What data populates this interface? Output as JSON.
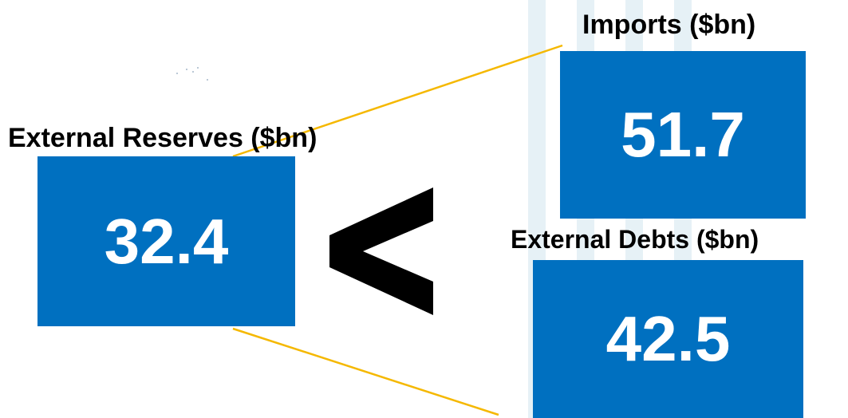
{
  "reserves": {
    "label": "External Reserves ($bn)",
    "value": "32.4"
  },
  "imports": {
    "label": "Imports ($bn)",
    "value": "51.7"
  },
  "debts": {
    "label": "External Debts  ($bn)",
    "value": "42.5"
  },
  "comparison": {
    "symbol": "less-than"
  },
  "colors": {
    "box": "#0070c0",
    "connector": "#f5b800",
    "stripe": "#e6f1f6"
  }
}
